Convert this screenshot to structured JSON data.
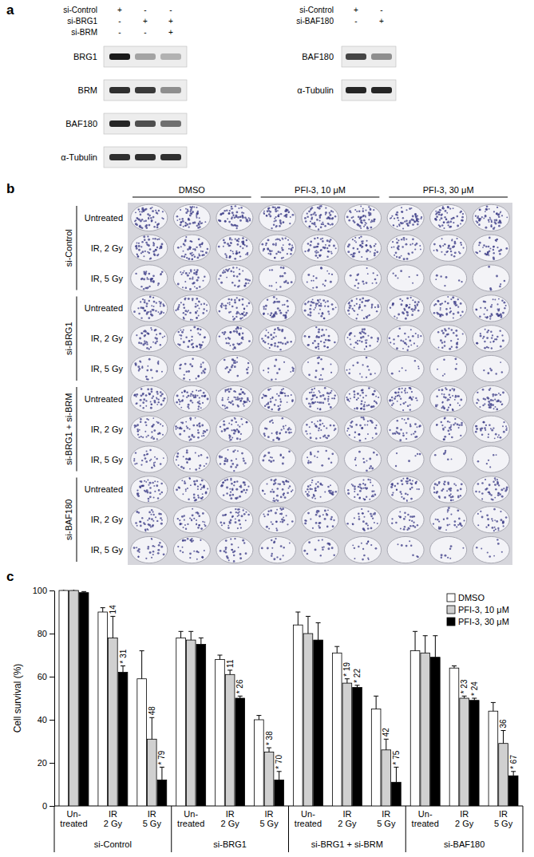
{
  "panel_a": {
    "label": "a",
    "blots": [
      {
        "conditions": [
          {
            "name": "si-Control",
            "lanes": [
              "+",
              "-",
              "-"
            ]
          },
          {
            "name": "si-BRG1",
            "lanes": [
              "-",
              "+",
              "+"
            ]
          },
          {
            "name": "si-BRM",
            "lanes": [
              "-",
              "-",
              "+"
            ]
          }
        ],
        "rows": [
          {
            "label": "BRG1",
            "intensity": [
              1.0,
              0.35,
              0.28
            ]
          },
          {
            "label": "BRM",
            "intensity": [
              0.9,
              0.85,
              0.45
            ]
          },
          {
            "label": "BAF180",
            "intensity": [
              0.95,
              0.75,
              0.6
            ]
          },
          {
            "label": "α-Tubulin",
            "intensity": [
              0.9,
              0.9,
              0.9
            ]
          }
        ]
      },
      {
        "conditions": [
          {
            "name": "si-Control",
            "lanes": [
              "+",
              "-"
            ]
          },
          {
            "name": "si-BAF180",
            "lanes": [
              "-",
              "+"
            ]
          }
        ],
        "rows": [
          {
            "label": "BAF180",
            "intensity": [
              0.8,
              0.45
            ]
          },
          {
            "label": "α-Tubulin",
            "intensity": [
              0.95,
              0.95
            ]
          }
        ]
      }
    ]
  },
  "panel_b": {
    "label": "b",
    "columns": [
      "DMSO",
      "PFI-3, 10 μM",
      "PFI-3, 30 μM"
    ],
    "replicates": 3,
    "groups": [
      "si-Control",
      "si-BRG1",
      "si-BRG1 + si-BRM",
      "si-BAF180"
    ],
    "rows": [
      "Untreated",
      "IR, 2 Gy",
      "IR, 5 Gy"
    ]
  },
  "chart_data": {
    "type": "bar",
    "panel_label": "c",
    "y_label": "Cell survival  (%)",
    "categories": [
      "Un-treated",
      "IR 2 Gy",
      "IR 5 Gy",
      "Un-treated",
      "IR 2 Gy",
      "IR 5 Gy",
      "Un-treated",
      "IR 2 Gy",
      "IR 5 Gy",
      "Un-treated",
      "IR 2 Gy",
      "IR 5 Gy"
    ],
    "groups": [
      "si-Control",
      "si-BRG1",
      "si-BRG1 + si-BRM",
      "si-BAF180"
    ],
    "series": [
      {
        "name": "DMSO",
        "color": "#ffffff",
        "values": [
          100,
          90,
          59,
          78,
          68,
          40,
          84,
          71,
          45,
          72,
          64,
          44
        ],
        "errors": [
          0.5,
          2,
          13,
          3,
          2,
          2,
          6,
          3,
          6,
          9,
          1,
          4
        ],
        "annotations": [
          null,
          null,
          null,
          null,
          null,
          null,
          null,
          null,
          null,
          null,
          null,
          null
        ]
      },
      {
        "name": "PFI-3, 10 μM",
        "color": "#d0d0d0",
        "values": [
          100,
          78,
          31,
          77,
          61,
          25,
          80,
          57,
          26,
          71,
          50,
          29
        ],
        "errors": [
          0.5,
          10,
          10,
          4,
          2,
          2,
          8,
          2,
          5,
          8,
          1,
          6
        ],
        "annotations": [
          null,
          "14",
          "48",
          null,
          "11",
          "* 38",
          null,
          "* 19",
          "42",
          null,
          "* 23",
          "36"
        ]
      },
      {
        "name": "PFI-3, 30 μM",
        "color": "#000000",
        "values": [
          99,
          62,
          12,
          75,
          50,
          12,
          77,
          55,
          11,
          69,
          49,
          14
        ],
        "errors": [
          0.5,
          3,
          6,
          3,
          1,
          4,
          8,
          1,
          7,
          10,
          1,
          2
        ],
        "annotations": [
          null,
          "* 31",
          "* 79",
          null,
          "* 26",
          "* 70",
          null,
          "* 22",
          "* 75",
          null,
          "* 24",
          "* 67"
        ]
      }
    ],
    "ylim": [
      0,
      100
    ],
    "yticks": [
      0,
      20,
      40,
      60,
      80,
      100
    ],
    "legend": "top-right"
  }
}
